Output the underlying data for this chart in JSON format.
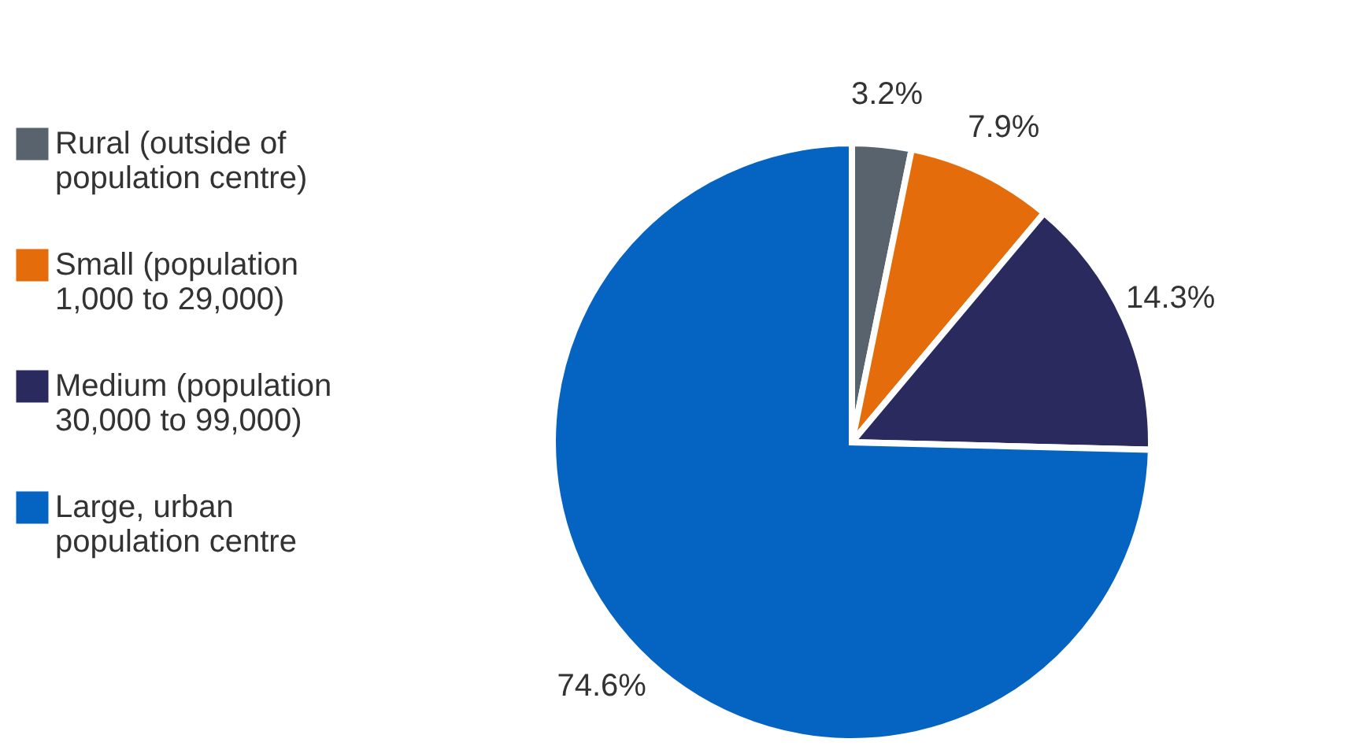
{
  "chart_data": {
    "type": "pie",
    "categories": [
      "Rural (outside of population centre)",
      "Small (population 1,000 to 29,000)",
      "Medium (population 30,000 to 99,000)",
      "Large, urban population centre"
    ],
    "values": [
      3.2,
      7.9,
      14.3,
      74.6
    ],
    "colors": [
      "#58636d",
      "#e46c0a",
      "#2b2a5e",
      "#0563c1"
    ],
    "value_labels": [
      "3.2%",
      "7.9%",
      "14.3%",
      "74.6%"
    ],
    "legend": "left"
  }
}
